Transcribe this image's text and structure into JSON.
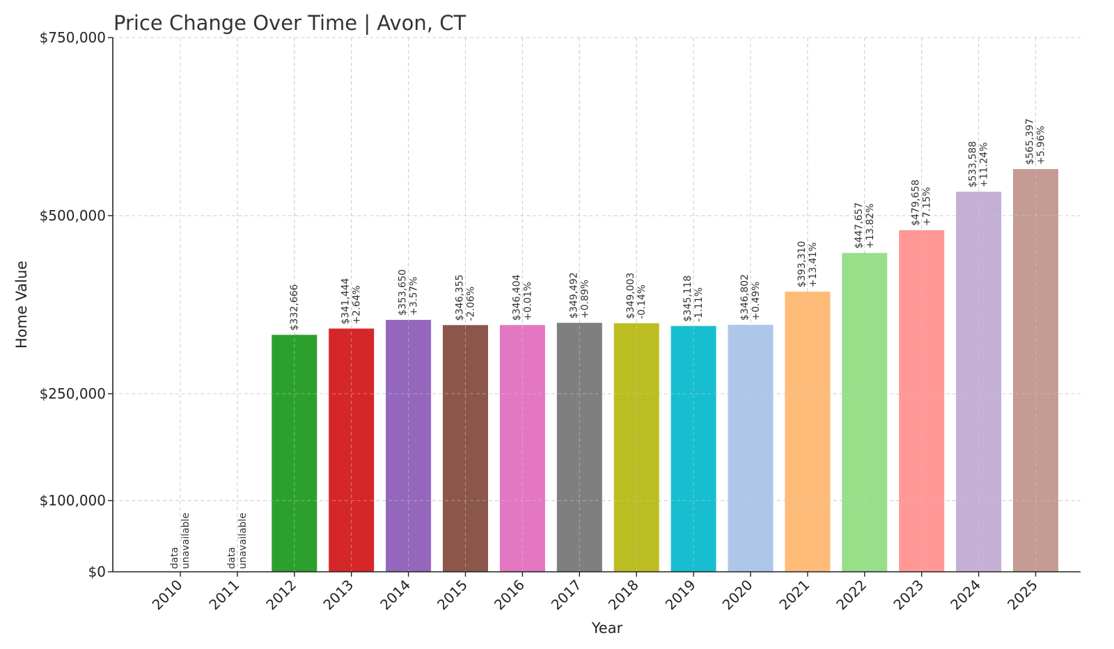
{
  "chart_data": {
    "type": "bar",
    "title": "Price Change Over Time | Avon, CT",
    "xlabel": "Year",
    "ylabel": "Home Value",
    "ylim": [
      0,
      750000
    ],
    "yticks": [
      0,
      100000,
      250000,
      500000,
      750000
    ],
    "ytick_labels": [
      "$0",
      "$100,000",
      "$250,000",
      "$500,000",
      "$750,000"
    ],
    "grid": true,
    "categories": [
      "2010",
      "2011",
      "2012",
      "2013",
      "2014",
      "2015",
      "2016",
      "2017",
      "2018",
      "2019",
      "2020",
      "2021",
      "2022",
      "2023",
      "2024",
      "2025"
    ],
    "values": [
      null,
      null,
      332666,
      341444,
      353650,
      346355,
      346404,
      349492,
      349003,
      345118,
      346802,
      393310,
      447657,
      479658,
      533588,
      565397
    ],
    "value_labels": [
      "",
      "",
      "$332,666",
      "$341,444",
      "$353,650",
      "$346,355",
      "$346,404",
      "$349,492",
      "$349,003",
      "$345,118",
      "$346,802",
      "$393,310",
      "$447,657",
      "$479,658",
      "$533,588",
      "$565,397"
    ],
    "change_labels": [
      "",
      "",
      "",
      "+2.64%",
      "+3.57%",
      "-2.06%",
      "+0.01%",
      "+0.89%",
      "-0.14%",
      "-1.11%",
      "+0.49%",
      "+13.41%",
      "+13.82%",
      "+7.15%",
      "+11.24%",
      "+5.96%"
    ],
    "missing_label": [
      "data",
      "unavailable"
    ],
    "colors": [
      "#1f77b4",
      "#ff7f0e",
      "#2ca02c",
      "#d62728",
      "#9467bd",
      "#8c564b",
      "#e377c2",
      "#7f7f7f",
      "#bcbd22",
      "#17becf",
      "#aec7e8",
      "#ffbb78",
      "#98df8a",
      "#ff9896",
      "#c5b0d5",
      "#c49c94"
    ]
  }
}
